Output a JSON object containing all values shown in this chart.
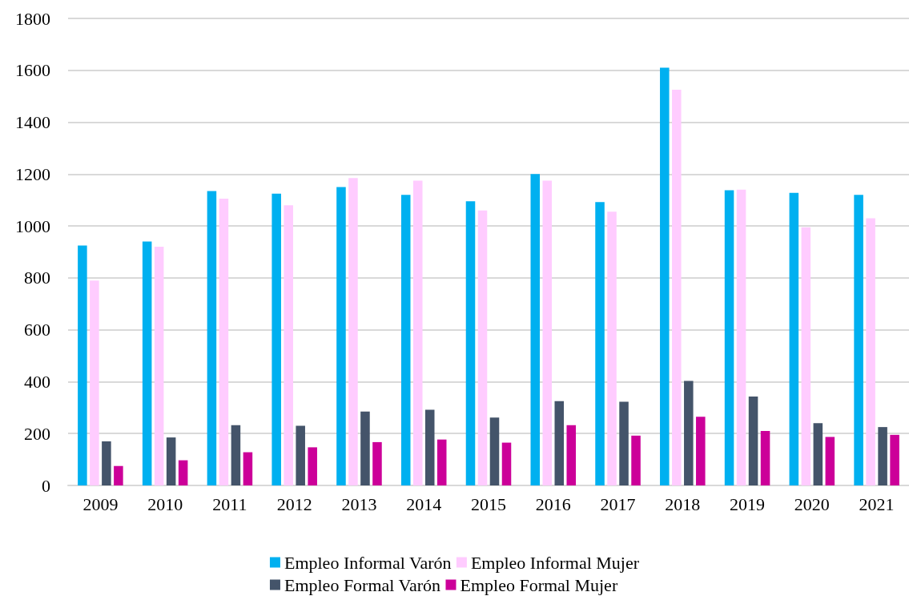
{
  "chart_data": {
    "type": "bar",
    "categories": [
      "2009",
      "2010",
      "2011",
      "2012",
      "2013",
      "2014",
      "2015",
      "2016",
      "2017",
      "2018",
      "2019",
      "2020",
      "2021"
    ],
    "series": [
      {
        "name": "Empleo Informal Varón",
        "color": "#00b0f0",
        "values": [
          925,
          940,
          1135,
          1125,
          1150,
          1120,
          1095,
          1200,
          1092,
          1610,
          1138,
          1128,
          1120
        ]
      },
      {
        "name": "Empleo Informal Mujer",
        "color": "#ffccff",
        "values": [
          790,
          920,
          1105,
          1080,
          1185,
          1175,
          1060,
          1175,
          1055,
          1525,
          1140,
          995,
          1030
        ]
      },
      {
        "name": "Empleo Formal Varón",
        "color": "#44546a",
        "values": [
          170,
          185,
          232,
          230,
          285,
          292,
          262,
          325,
          323,
          403,
          343,
          240,
          225
        ]
      },
      {
        "name": "Empleo Formal Mujer",
        "color": "#cc0099",
        "values": [
          75,
          97,
          128,
          147,
          167,
          177,
          165,
          232,
          192,
          265,
          210,
          187,
          195
        ]
      }
    ],
    "ylim": [
      0,
      1800
    ],
    "yticks": [
      0,
      200,
      400,
      600,
      800,
      1000,
      1200,
      1400,
      1600,
      1800
    ],
    "grid": "y",
    "legend": "bottom"
  }
}
